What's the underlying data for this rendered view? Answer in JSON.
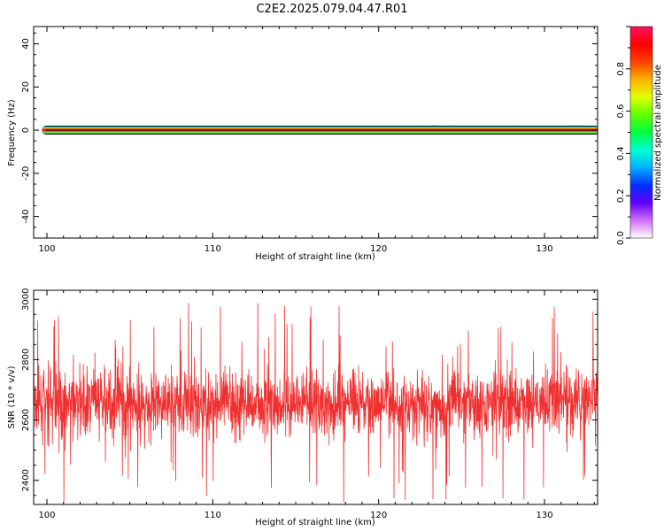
{
  "title": "C2E2.2025.079.04.47.R01",
  "colors": {
    "snr_line": "#f03030",
    "axis": "#000000",
    "background": "#ffffff"
  },
  "chart_data": [
    {
      "type": "heatmap",
      "xlabel": "Height of straight line (km)",
      "ylabel": "Frequency (Hz)",
      "xlim": [
        99.2,
        133.2
      ],
      "ylim": [
        -50,
        48
      ],
      "x_ticks": [
        100,
        110,
        120,
        130
      ],
      "y_ticks": [
        -40,
        -20,
        0,
        20,
        40
      ],
      "band": {
        "x_start": 99.7,
        "x_end": 133.2,
        "frequency_center": 0,
        "frequency_halfwidth": 1.5,
        "scatter_from_x": 117.5
      },
      "colorbar": {
        "label": "Normalized spectral amplitude",
        "range": [
          0.0,
          1.0
        ],
        "ticks": [
          "0.0",
          "0.2",
          "0.4",
          "0.6",
          "0.8"
        ],
        "colors": [
          "#ffffff",
          "#d070ff",
          "#6000ff",
          "#0030ff",
          "#00b0ff",
          "#00ffd0",
          "#00ff40",
          "#60ff00",
          "#e0ff00",
          "#ffb000",
          "#ff4000",
          "#ff0000",
          "#ff1060"
        ]
      }
    },
    {
      "type": "line",
      "xlabel": "Height of straight line (km)",
      "ylabel": "SNR (10 * v/v)",
      "xlim": [
        99.2,
        133.2
      ],
      "ylim": [
        2320,
        3030
      ],
      "x_ticks": [
        100,
        110,
        120,
        130
      ],
      "y_ticks": [
        2400,
        2600,
        2800,
        3000
      ],
      "series": [
        {
          "points": 2200,
          "mean": 2655,
          "typical_range": [
            2440,
            2880
          ],
          "max": 3030,
          "min": 2325,
          "seed": 7
        }
      ]
    }
  ]
}
